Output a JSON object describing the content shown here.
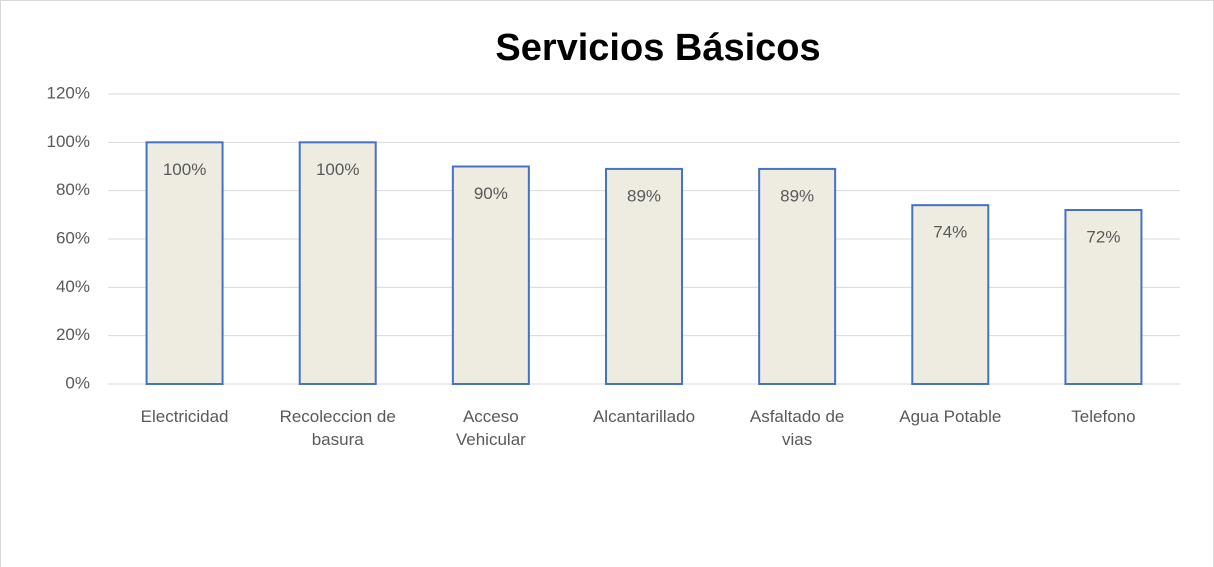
{
  "chart_data": {
    "type": "bar",
    "title": "Servicios Básicos",
    "categories": [
      "Electricidad",
      "Recoleccion de basura",
      "Acceso Vehicular",
      "Alcantarillado",
      "Asfaltado de vias",
      "Agua Potable",
      "Telefono"
    ],
    "values": [
      100,
      100,
      90,
      89,
      89,
      74,
      72
    ],
    "value_labels": [
      "100%",
      "100%",
      "90%",
      "89%",
      "89%",
      "74%",
      "72%"
    ],
    "color": "#eeebe0",
    "edge_color": "#4472c4",
    "ylim": [
      0,
      120
    ],
    "yticks": [
      {
        "value": 0,
        "label": "0%"
      },
      {
        "value": 20,
        "label": "20%"
      },
      {
        "value": 40,
        "label": "40%"
      },
      {
        "value": 60,
        "label": "60%"
      },
      {
        "value": 80,
        "label": "80%"
      },
      {
        "value": 100,
        "label": "100%"
      },
      {
        "value": 120,
        "label": "120%"
      }
    ],
    "grid": true
  }
}
